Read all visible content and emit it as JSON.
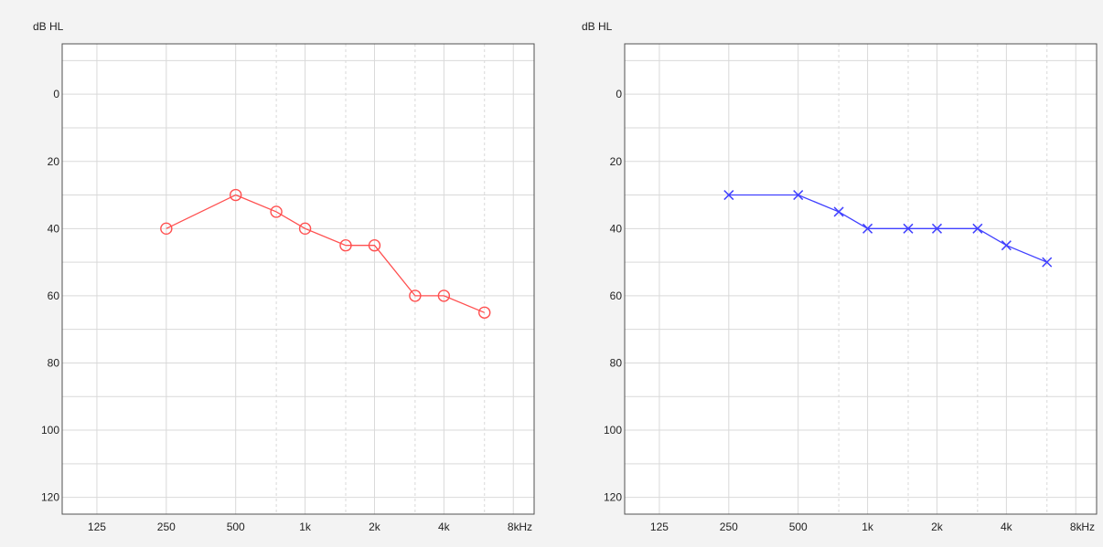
{
  "colors": {
    "background": "#f3f3f3",
    "plot_area": "#ffffff",
    "left_ear": "#ff5050",
    "right_ear": "#4040ff",
    "grid": "#d9d9d9",
    "frame": "#505050"
  },
  "chart_data": [
    {
      "type": "line",
      "ylabel": "dB HL",
      "xunit": "Hz",
      "x_scale": "log2",
      "y_inverted": true,
      "ylim": [
        125,
        -15
      ],
      "xlim_octaves": [
        -0.5,
        6.3
      ],
      "yticks": [
        0,
        20,
        40,
        60,
        80,
        100,
        120
      ],
      "yticks_labels": [
        "0",
        "20",
        "40",
        "60",
        "80",
        "100",
        "120"
      ],
      "xticks": [
        125,
        250,
        500,
        1000,
        2000,
        4000,
        8000
      ],
      "xticks_labels": [
        "125",
        "250",
        "500",
        "1k",
        "2k",
        "4k",
        "8k"
      ],
      "grid": true,
      "series": [
        {
          "marker": "circle",
          "color": "#ff5050",
          "x": [
            250,
            500,
            750,
            1000,
            1500,
            2000,
            3000,
            4000,
            6000
          ],
          "y": [
            40,
            30,
            35,
            40,
            45,
            45,
            60,
            60,
            65
          ]
        }
      ]
    },
    {
      "type": "line",
      "ylabel": "dB HL",
      "xunit": "Hz",
      "x_scale": "log2",
      "y_inverted": true,
      "ylim": [
        125,
        -15
      ],
      "xlim_octaves": [
        -0.5,
        6.3
      ],
      "yticks": [
        0,
        20,
        40,
        60,
        80,
        100,
        120
      ],
      "yticks_labels": [
        "0",
        "20",
        "40",
        "60",
        "80",
        "100",
        "120"
      ],
      "xticks": [
        125,
        250,
        500,
        1000,
        2000,
        4000,
        8000
      ],
      "xticks_labels": [
        "125",
        "250",
        "500",
        "1k",
        "2k",
        "4k",
        "8k"
      ],
      "grid": true,
      "series": [
        {
          "marker": "x",
          "color": "#4040ff",
          "x": [
            250,
            500,
            750,
            1000,
            1500,
            2000,
            3000,
            4000,
            6000
          ],
          "y": [
            30,
            30,
            35,
            40,
            40,
            40,
            40,
            45,
            50
          ]
        }
      ]
    }
  ]
}
